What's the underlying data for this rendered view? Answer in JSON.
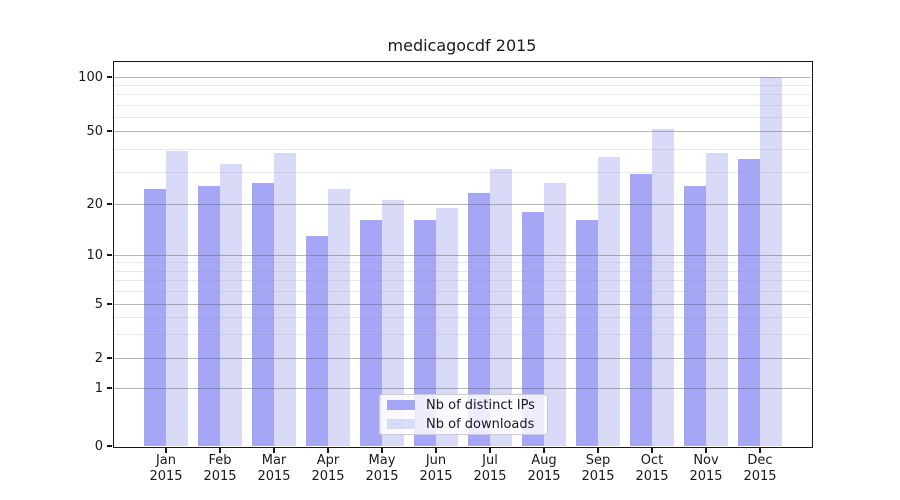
{
  "title": "medicagocdf 2015",
  "colors": {
    "distinct_ips_bar": "#a6a6f6",
    "downloads_bar": "#d9d9f8",
    "major_grid": "#b3b3b3",
    "minor_grid": "#e7e7e7",
    "spine": "#1a1a1a",
    "legend_border": "#cccccc"
  },
  "y_axis": {
    "tick_labels": [
      "100",
      "50",
      "20",
      "10",
      "5",
      "2",
      "1",
      "0"
    ],
    "tick_values": [
      100,
      50,
      20,
      10,
      5,
      2,
      1,
      0
    ]
  },
  "x_axis": {
    "tick_labels": [
      "Jan\n2015",
      "Feb\n2015",
      "Mar\n2015",
      "Apr\n2015",
      "May\n2015",
      "Jun\n2015",
      "Jul\n2015",
      "Aug\n2015",
      "Sep\n2015",
      "Oct\n2015",
      "Nov\n2015",
      "Dec\n2015"
    ]
  },
  "legend": {
    "items": [
      {
        "label": "Nb of distinct IPs",
        "color": "#a6a6f6"
      },
      {
        "label": "Nb of downloads",
        "color": "#d9d9f8"
      }
    ]
  },
  "chart_data": {
    "type": "bar",
    "title": "medicagocdf 2015",
    "categories": [
      "Jan 2015",
      "Feb 2015",
      "Mar 2015",
      "Apr 2015",
      "May 2015",
      "Jun 2015",
      "Jul 2015",
      "Aug 2015",
      "Sep 2015",
      "Oct 2015",
      "Nov 2015",
      "Dec 2015"
    ],
    "series": [
      {
        "name": "Nb of distinct IPs",
        "color": "#a6a6f6",
        "values": [
          24,
          25,
          26,
          13,
          16,
          16,
          23,
          18,
          16,
          29,
          25,
          35
        ]
      },
      {
        "name": "Nb of downloads",
        "color": "#d9d9f8",
        "values": [
          39,
          33,
          38,
          24,
          21,
          19,
          31,
          26,
          36,
          51,
          38,
          100
        ]
      }
    ],
    "xlabel": "",
    "ylabel": "",
    "yscale": "symlog",
    "ylim": [
      0,
      100
    ],
    "ytick_values": [
      0,
      1,
      2,
      5,
      10,
      20,
      50,
      100
    ],
    "minor_ytick_values": [
      3,
      4,
      6,
      7,
      8,
      9,
      30,
      40,
      60,
      70,
      80,
      90
    ],
    "grid": true,
    "legend_position": "lower center"
  }
}
